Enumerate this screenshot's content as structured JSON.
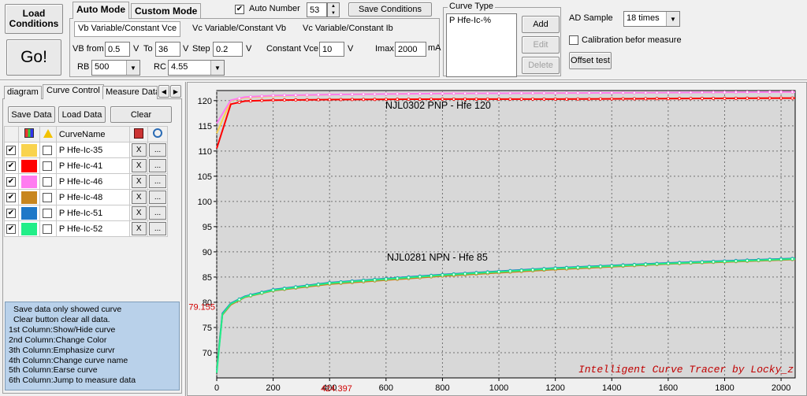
{
  "top": {
    "load_conditions": "Load Conditions",
    "go": "Go!",
    "tabs": [
      "Auto Mode",
      "Custom Mode"
    ],
    "auto_number_label": "Auto Number",
    "auto_number_value": "53",
    "save_conditions": "Save Conditions",
    "mode_tabs": [
      "Vb Variable/Constant Vce",
      "Vc Variable/Constant Vb",
      "Vc Variable/Constant Ib"
    ],
    "vb_from_label": "VB from",
    "vb_from_value": "0.5",
    "v1": "V",
    "to_label": "To",
    "to_value": "36",
    "v2": "V",
    "step_label": "Step",
    "step_value": "0.2",
    "v3": "V",
    "constant_vce_label": "Constant Vce",
    "constant_vce_value": "10",
    "v4": "V",
    "imax_label": "Imax",
    "imax_value": "2000",
    "ma": "mA",
    "rb_label": "RB",
    "rb_value": "500",
    "rc_label": "RC",
    "rc_value": "4.55",
    "curve_type_label": "Curve Type",
    "curve_type_item": "P Hfe-Ic-%",
    "add": "Add",
    "edit": "Edit",
    "delete": "Delete",
    "ad_sample_label": "AD Sample",
    "ad_sample_value": "18 times",
    "calibration_label": "Calibration befor measure",
    "offset_test": "Offset test"
  },
  "left": {
    "tabs": [
      "diagram",
      "Curve Control",
      "Measure Data"
    ],
    "save_data": "Save Data",
    "load_data": "Load Data",
    "clear": "Clear",
    "curve_name_header": "CurveName",
    "curves": [
      {
        "name": "P Hfe-Ic-35",
        "color": "#f9d34e",
        "show": true
      },
      {
        "name": "P Hfe-Ic-41",
        "color": "#ff0000",
        "show": true
      },
      {
        "name": "P Hfe-Ic-46",
        "color": "#ff7cf0",
        "show": true
      },
      {
        "name": "P Hfe-Ic-48",
        "color": "#c8861e",
        "show": true
      },
      {
        "name": "P Hfe-Ic-51",
        "color": "#1e78c8",
        "show": true
      },
      {
        "name": "P Hfe-Ic-52",
        "color": "#22ee88",
        "show": true
      }
    ],
    "x_label": "X",
    "dots_label": "...",
    "help_lines": [
      "Save data only showed curve",
      "Clear button clear all data.",
      "1st Column:Show/Hide curve",
      "2nd Column:Change Color",
      "3th Column:Emphasize curvr",
      "4th Column:Change curve name",
      "5th Column:Earse curve",
      "6th Column:Jump to measure data"
    ]
  },
  "chart_data": {
    "type": "line",
    "xlim": [
      0,
      2050
    ],
    "ylim": [
      65,
      122
    ],
    "x_ticks": [
      0,
      200,
      400,
      600,
      800,
      1000,
      1200,
      1400,
      1600,
      1800,
      2000
    ],
    "y_ticks": [
      70,
      75,
      80,
      85,
      90,
      95,
      100,
      105,
      110,
      115,
      120
    ],
    "grid": true,
    "cursor_x": "424.397",
    "cursor_y": "79.155",
    "annotations": [
      "NJL0302 PNP - Hfe 120",
      "NJL0281 NPN - Hfe 85"
    ],
    "watermark": "Intelligent Curve Tracer by Locky_z",
    "series": [
      {
        "color": "#f9d34e",
        "x": [
          0,
          50,
          100,
          200,
          400,
          800,
          1200,
          1600,
          2000,
          2050
        ],
        "y": [
          113.5,
          120.0,
          120.6,
          120.9,
          121.2,
          121.4,
          121.5,
          121.6,
          121.7,
          121.7
        ]
      },
      {
        "color": "#ff0000",
        "x": [
          0,
          50,
          100,
          200,
          400,
          800,
          1200,
          1600,
          2000,
          2050
        ],
        "y": [
          110.5,
          119.3,
          119.9,
          120.1,
          120.2,
          120.3,
          120.3,
          120.4,
          120.5,
          120.5
        ]
      },
      {
        "color": "#ff7cf0",
        "x": [
          0,
          50,
          100,
          200,
          400,
          800,
          1200,
          1600,
          2000,
          2050
        ],
        "y": [
          115.5,
          120.1,
          120.7,
          121.0,
          121.2,
          121.4,
          121.5,
          121.6,
          121.7,
          121.7
        ]
      },
      {
        "color": "#c8861e",
        "x": [
          0,
          20,
          50,
          100,
          200,
          400,
          800,
          1200,
          1600,
          2000,
          2050
        ],
        "y": [
          67.0,
          77.5,
          79.5,
          81.0,
          82.3,
          83.6,
          85.2,
          86.5,
          87.6,
          88.4,
          88.5
        ]
      },
      {
        "color": "#1e78c8",
        "x": [
          0,
          20,
          50,
          100,
          200,
          400,
          800,
          1200,
          1600,
          2000,
          2050
        ],
        "y": [
          66.5,
          77.8,
          79.8,
          81.2,
          82.5,
          83.9,
          85.5,
          86.8,
          87.8,
          88.6,
          88.7
        ]
      },
      {
        "color": "#22ee88",
        "x": [
          0,
          20,
          50,
          100,
          200,
          400,
          800,
          1200,
          1600,
          2000,
          2050
        ],
        "y": [
          66.0,
          77.6,
          79.7,
          81.1,
          82.4,
          83.8,
          85.4,
          86.7,
          87.7,
          88.5,
          88.6
        ]
      }
    ]
  }
}
